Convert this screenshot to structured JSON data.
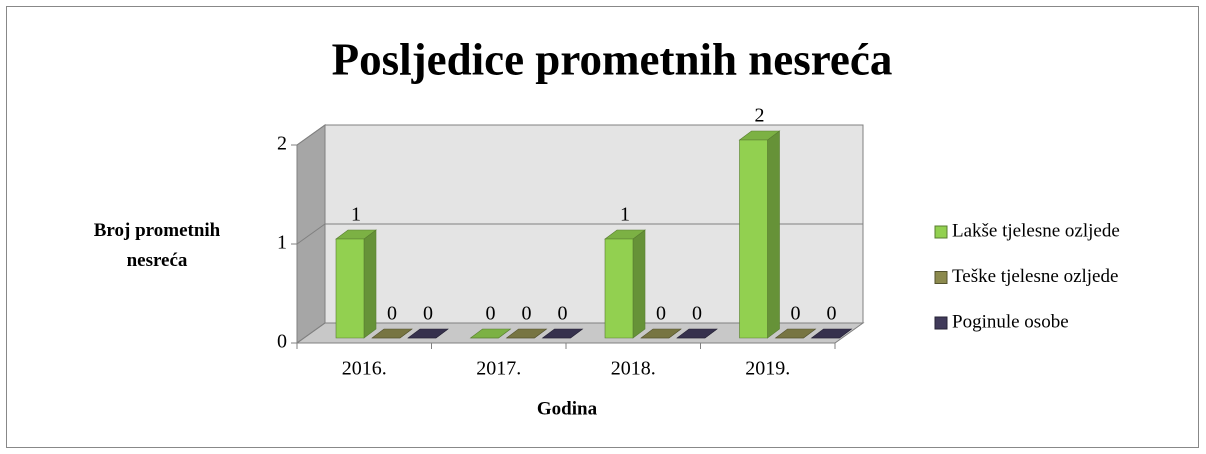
{
  "chart_data": {
    "type": "bar3d",
    "title": "Posljedice prometnih nesreća",
    "x_label": "Godina",
    "y_label": "Broj prometnih nesreća",
    "categories": [
      "2016.",
      "2017.",
      "2018.",
      "2019."
    ],
    "series": [
      {
        "name": "Lakše tjelesne ozljede",
        "color": "#92d050",
        "values": [
          1,
          0,
          1,
          2
        ]
      },
      {
        "name": "Teške tjelesne ozljede",
        "color": "#8c8a4e",
        "values": [
          0,
          0,
          0,
          0
        ]
      },
      {
        "name": "Poginule osobe",
        "color": "#403a5a",
        "values": [
          0,
          0,
          0,
          0
        ]
      }
    ],
    "ylim": [
      0,
      2
    ],
    "yticks": [
      0,
      1,
      2
    ],
    "grid": true,
    "legend": "right"
  }
}
